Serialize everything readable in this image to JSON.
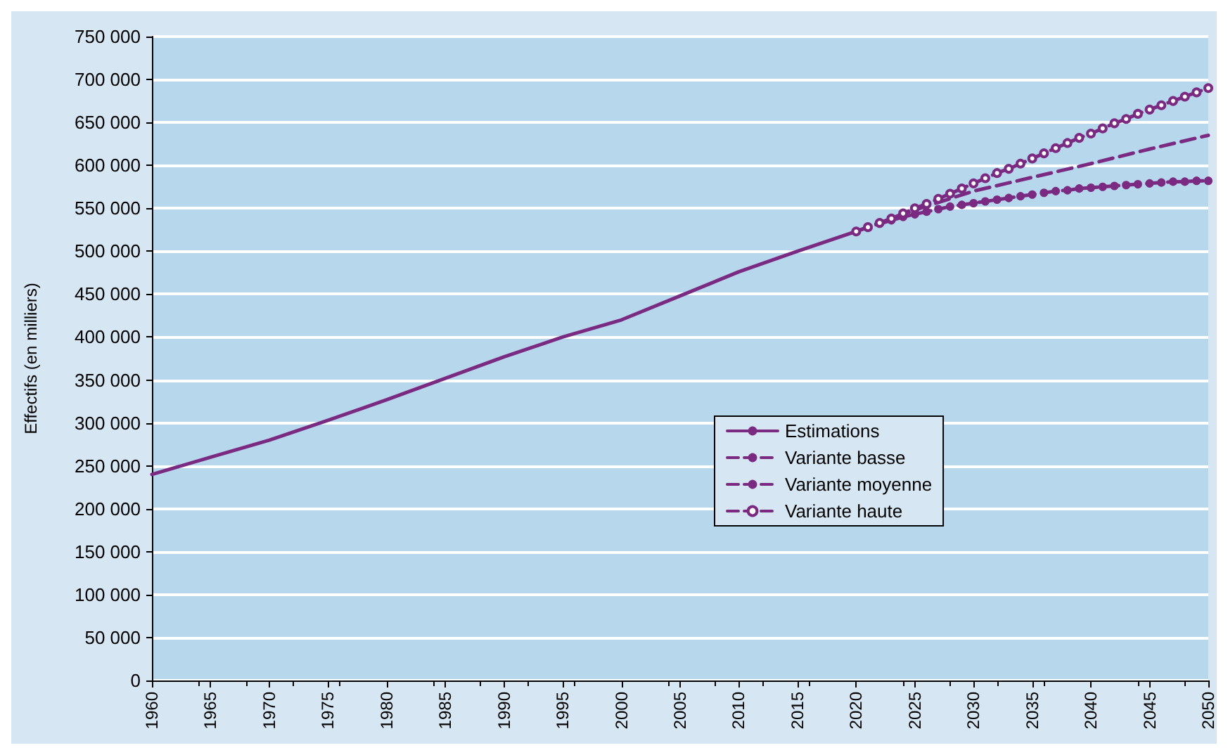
{
  "chart_data": {
    "type": "line",
    "ylabel": "Effectifs (en milliers)",
    "xlim": [
      1960,
      2050
    ],
    "xticks": [
      1960,
      1965,
      1970,
      1975,
      1980,
      1985,
      1990,
      1995,
      2000,
      2005,
      2010,
      2015,
      2020,
      2025,
      2030,
      2035,
      2040,
      2045,
      2050
    ],
    "ylim": [
      0,
      750000
    ],
    "yticks": [
      {
        "value": 0,
        "label": "0"
      },
      {
        "value": 50000,
        "label": "50 000"
      },
      {
        "value": 100000,
        "label": "100 000"
      },
      {
        "value": 150000,
        "label": "150 000"
      },
      {
        "value": 200000,
        "label": "200 000"
      },
      {
        "value": 250000,
        "label": "250 000"
      },
      {
        "value": 300000,
        "label": "300 000"
      },
      {
        "value": 350000,
        "label": "350 000"
      },
      {
        "value": 400000,
        "label": "400 000"
      },
      {
        "value": 450000,
        "label": "450 000"
      },
      {
        "value": 500000,
        "label": "500 000"
      },
      {
        "value": 550000,
        "label": "550 000"
      },
      {
        "value": 600000,
        "label": "600 000"
      },
      {
        "value": 650000,
        "label": "650 000"
      },
      {
        "value": 700000,
        "label": "700 000"
      },
      {
        "value": 750000,
        "label": "750 000"
      }
    ],
    "grid": "y",
    "legend": "center",
    "series": [
      {
        "name": "Estimations",
        "color": "#7b2a82",
        "line_style": "solid",
        "marker": "none",
        "x": [
          1960,
          1965,
          1970,
          1975,
          1980,
          1985,
          1990,
          1995,
          2000,
          2005,
          2010,
          2015,
          2020
        ],
        "values": [
          240000,
          260000,
          280000,
          303000,
          327000,
          352000,
          377000,
          400000,
          420000,
          448000,
          476000,
          500000,
          523000
        ]
      },
      {
        "name": "Variante basse",
        "color": "#7b2a82",
        "line_style": "dashed",
        "marker": "circle",
        "x": [
          2020,
          2021,
          2022,
          2023,
          2024,
          2025,
          2026,
          2027,
          2028,
          2029,
          2030,
          2031,
          2032,
          2033,
          2034,
          2035,
          2036,
          2037,
          2038,
          2039,
          2040,
          2041,
          2042,
          2043,
          2044,
          2045,
          2046,
          2047,
          2048,
          2049,
          2050
        ],
        "values": [
          523000,
          528000,
          532000,
          536000,
          540000,
          543000,
          546000,
          549000,
          552000,
          554000,
          556000,
          558000,
          560000,
          562000,
          564000,
          566000,
          568000,
          570000,
          571000,
          573000,
          574000,
          575000,
          576000,
          577000,
          578000,
          579000,
          580000,
          581000,
          581000,
          582000,
          582000
        ]
      },
      {
        "name": "Variante moyenne",
        "color": "#7b2a82",
        "line_style": "dashed",
        "marker": "none",
        "x": [
          2020,
          2025,
          2030,
          2035,
          2040,
          2045,
          2050
        ],
        "values": [
          523000,
          548000,
          570000,
          586000,
          602000,
          619000,
          635000
        ]
      },
      {
        "name": "Variante haute",
        "color": "#7b2a82",
        "line_style": "dashed",
        "marker": "emptyCircle",
        "x": [
          2020,
          2021,
          2022,
          2023,
          2024,
          2025,
          2026,
          2027,
          2028,
          2029,
          2030,
          2031,
          2032,
          2033,
          2034,
          2035,
          2036,
          2037,
          2038,
          2039,
          2040,
          2041,
          2042,
          2043,
          2044,
          2045,
          2046,
          2047,
          2048,
          2049,
          2050
        ],
        "values": [
          523000,
          528000,
          533000,
          538000,
          544000,
          550000,
          555000,
          561000,
          567000,
          573000,
          579000,
          585000,
          591000,
          596000,
          602000,
          608000,
          614000,
          620000,
          626000,
          632000,
          637000,
          643000,
          649000,
          654000,
          660000,
          665000,
          670000,
          675000,
          680000,
          685000,
          690000
        ]
      }
    ]
  }
}
